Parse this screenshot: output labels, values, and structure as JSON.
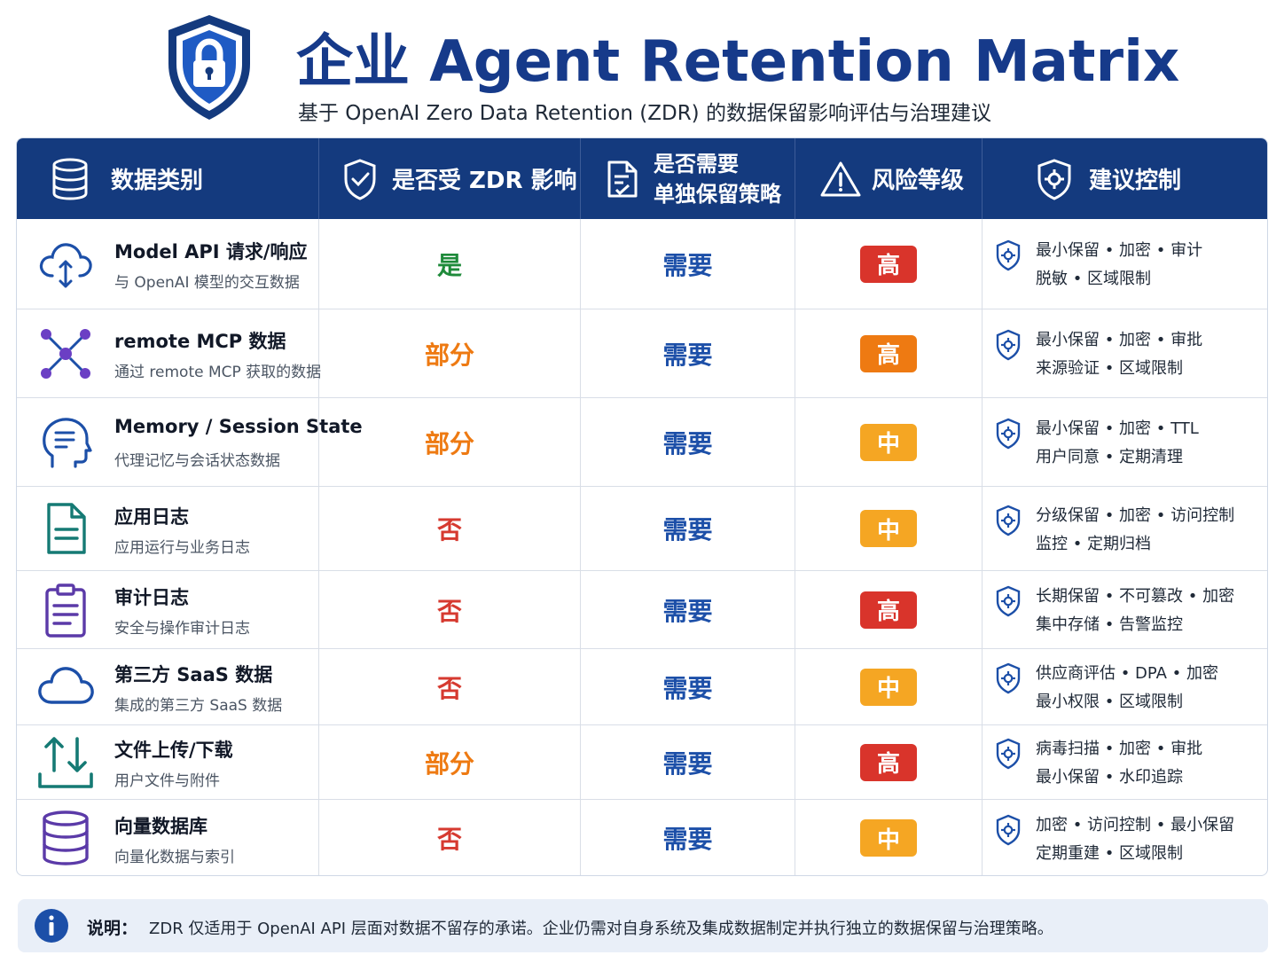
{
  "header": {
    "title": "企业 Agent Retention Matrix",
    "subtitle": "基于 OpenAI Zero Data Retention (ZDR) 的数据保留影响评估与治理建议",
    "logo_icon": "shield-lock-icon"
  },
  "colors": {
    "header_bg": "#143a7e",
    "title": "#163a8a",
    "zdr_yes": "#1e8a3a",
    "zdr_partial": "#ee7a12",
    "zdr_no": "#d63a30",
    "need": "#1c4fa8",
    "risk_high": "#d9342b",
    "risk_high_alt": "#ee7a12",
    "risk_medium": "#f5a623",
    "note_bg": "#e9eff8"
  },
  "columns": [
    {
      "label": "数据类别",
      "icon": "database-icon"
    },
    {
      "label": "是否受 ZDR 影响",
      "icon": "shield-check-icon"
    },
    {
      "label": "是否需要 单独保留策略",
      "line1": "是否需要",
      "line2": "单独保留策略",
      "icon": "document-check-icon"
    },
    {
      "label": "风险等级",
      "icon": "warning-icon"
    },
    {
      "label": "建议控制",
      "icon": "shield-gear-icon"
    }
  ],
  "rows": [
    {
      "name": "Model API 请求/响应",
      "desc": "与 OpenAI 模型的交互数据",
      "icon": "cloud-sync-icon",
      "zdr": "是",
      "zdr_kind": "yes",
      "need": "需要",
      "risk": "高",
      "risk_color": "#d9342b",
      "ctrl1": "最小保留  •  加密  •  审计",
      "ctrl2": "脱敏  •  区域限制"
    },
    {
      "name": "remote MCP 数据",
      "desc": "通过 remote MCP 获取的数据",
      "icon": "network-hub-icon",
      "zdr": "部分",
      "zdr_kind": "part",
      "need": "需要",
      "risk": "高",
      "risk_color": "#ee7a12",
      "ctrl1": "最小保留  •  加密  •  审批",
      "ctrl2": "来源验证  •  区域限制"
    },
    {
      "name": "Memory / Session State",
      "desc": "代理记忆与会话状态数据",
      "icon": "head-memory-icon",
      "zdr": "部分",
      "zdr_kind": "part",
      "need": "需要",
      "risk": "中",
      "risk_color": "#f5a623",
      "ctrl1": "最小保留  •  加密  •  TTL",
      "ctrl2": "用户同意  •  定期清理"
    },
    {
      "name": "应用日志",
      "desc": "应用运行与业务日志",
      "icon": "file-text-icon",
      "zdr": "否",
      "zdr_kind": "no",
      "need": "需要",
      "risk": "中",
      "risk_color": "#f5a623",
      "ctrl1": "分级保留  •  加密  •  访问控制",
      "ctrl2": "监控  •  定期归档"
    },
    {
      "name": "审计日志",
      "desc": "安全与操作审计日志",
      "icon": "clipboard-icon",
      "zdr": "否",
      "zdr_kind": "no",
      "need": "需要",
      "risk": "高",
      "risk_color": "#d9342b",
      "ctrl1": "长期保留  •  不可篡改  •  加密",
      "ctrl2": "集中存储  •  告警监控"
    },
    {
      "name": "第三方 SaaS 数据",
      "desc": "集成的第三方 SaaS 数据",
      "icon": "cloud-icon",
      "zdr": "否",
      "zdr_kind": "no",
      "need": "需要",
      "risk": "中",
      "risk_color": "#f5a623",
      "ctrl1": "供应商评估  •  DPA  •  加密",
      "ctrl2": "最小权限  •  区域限制"
    },
    {
      "name": "文件上传/下载",
      "desc": "用户文件与附件",
      "icon": "upload-download-icon",
      "zdr": "部分",
      "zdr_kind": "part",
      "need": "需要",
      "risk": "高",
      "risk_color": "#d9342b",
      "ctrl1": "病毒扫描  •  加密  •  审批",
      "ctrl2": "最小保留  •  水印追踪"
    },
    {
      "name": "向量数据库",
      "desc": "向量化数据与索引",
      "icon": "vector-database-icon",
      "zdr": "否",
      "zdr_kind": "no",
      "need": "需要",
      "risk": "中",
      "risk_color": "#f5a623",
      "ctrl1": "加密  •  访问控制  •  最小保留",
      "ctrl2": "定期重建  •  区域限制"
    }
  ],
  "note": {
    "label": "说明：",
    "text": "ZDR 仅适用于 OpenAI API 层面对数据不留存的承诺。企业仍需对自身系统及集成数据制定并执行独立的数据保留与治理策略。",
    "icon": "info-icon"
  }
}
